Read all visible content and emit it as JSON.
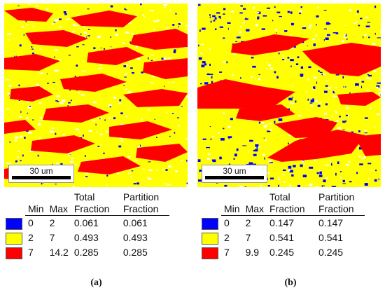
{
  "panels": [
    {
      "id": "a",
      "caption": "(a)",
      "scale_bar": "30 um",
      "headers": {
        "min": "Min",
        "max": "Max",
        "total": "Total Fraction",
        "partition": "Partition Fraction"
      },
      "rows": [
        {
          "color": "#0000ff",
          "min": "0",
          "max": "2",
          "total": "0.061",
          "partition": "0.061"
        },
        {
          "color": "#ffff00",
          "min": "2",
          "max": "7",
          "total": "0.493",
          "partition": "0.493"
        },
        {
          "color": "#ff0000",
          "min": "7",
          "max": "14.2",
          "total": "0.285",
          "partition": "0.285"
        }
      ]
    },
    {
      "id": "b",
      "caption": "(b)",
      "scale_bar": "30 um",
      "headers": {
        "min": "Min",
        "max": "Max",
        "total": "Total Fraction",
        "partition": "Partition Fraction"
      },
      "rows": [
        {
          "color": "#0000ff",
          "min": "0",
          "max": "2",
          "total": "0.147",
          "partition": "0.147"
        },
        {
          "color": "#ffff00",
          "min": "2",
          "max": "7",
          "total": "0.541",
          "partition": "0.541"
        },
        {
          "color": "#ff0000",
          "min": "7",
          "max": "9.9",
          "total": "0.245",
          "partition": "0.245"
        }
      ]
    }
  ],
  "colors": {
    "blue": "#0000ff",
    "yellow": "#ffff00",
    "red": "#ff0000",
    "white": "#ffffff"
  }
}
